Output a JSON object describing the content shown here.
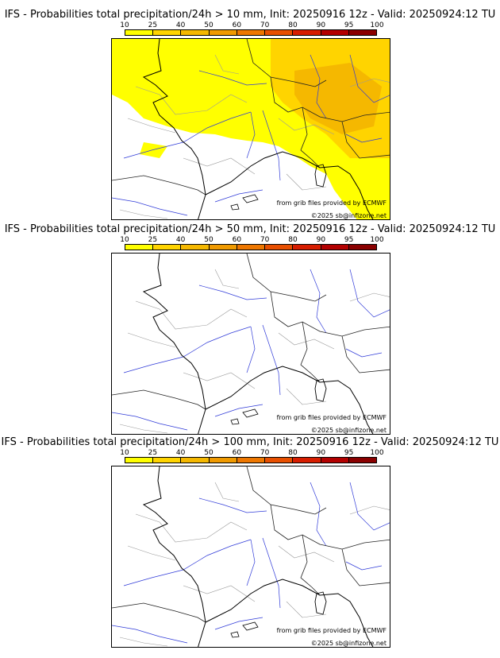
{
  "scale": {
    "ticks": [
      "10",
      "25",
      "40",
      "50",
      "60",
      "70",
      "80",
      "90",
      "95",
      "100"
    ],
    "colors": [
      "#ffff00",
      "#ffd400",
      "#f5b800",
      "#f09a00",
      "#ee7700",
      "#e84f00",
      "#d71d00",
      "#b30000",
      "#8a0000",
      "#5c0000"
    ]
  },
  "panels": [
    {
      "title": "IFS - Probabilities total precipitation/24h > 10 mm, Init: 20250916 12z - Valid: 20250924:12 TU",
      "credit_line1": "from grib files provided by ECMWF",
      "credit_line2": "©2025 sb@infizone.net",
      "has_precip": true
    },
    {
      "title": "IFS - Probabilities total precipitation/24h > 50 mm, Init: 20250916 12z - Valid: 20250924:12 TU",
      "credit_line1": "from grib files provided by ECMWF",
      "credit_line2": "©2025 sb@infizone.net",
      "has_precip": false
    },
    {
      "title": "IFS - Probabilities total precipitation/24h > 100 mm, Init: 20250916 12z - Valid: 20250924:12 TU",
      "credit_line1": "from grib files provided by ECMWF",
      "credit_line2": "©2025 sb@infizone.net",
      "has_precip": false
    }
  ]
}
